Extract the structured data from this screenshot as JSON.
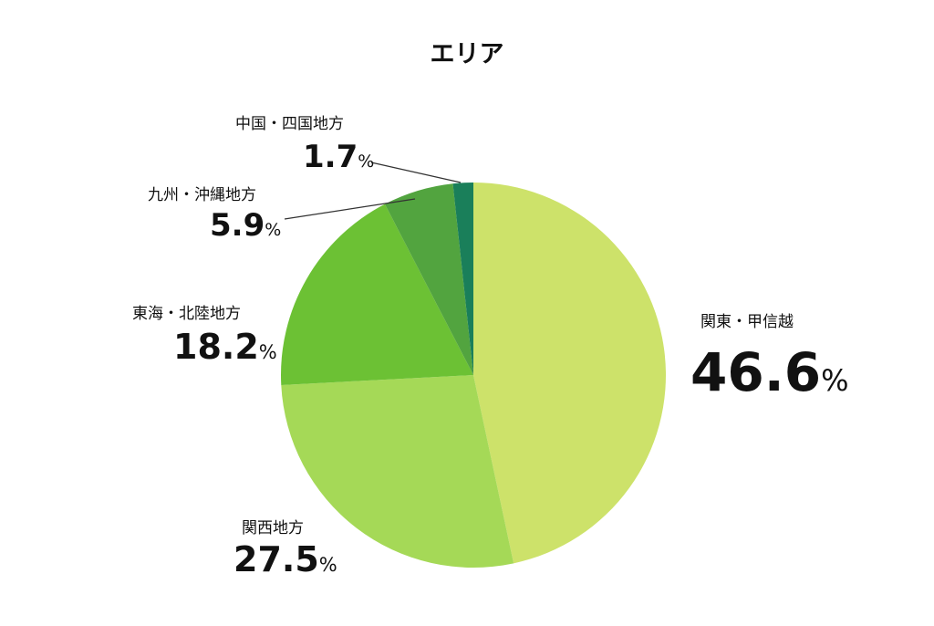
{
  "chart_data": {
    "type": "pie",
    "title": "エリア",
    "categories": [
      "関東・甲信越",
      "関西地方",
      "東海・北陸地方",
      "九州・沖縄地方",
      "中国・四国地方"
    ],
    "values": [
      46.6,
      27.5,
      18.2,
      5.9,
      1.7
    ],
    "value_labels": [
      "46.6%",
      "27.5%",
      "18.2%",
      "5.9%",
      "1.7%"
    ],
    "colors": [
      "#cde26a",
      "#a5d957",
      "#6cc134",
      "#52a43f",
      "#1a7f5a"
    ]
  }
}
